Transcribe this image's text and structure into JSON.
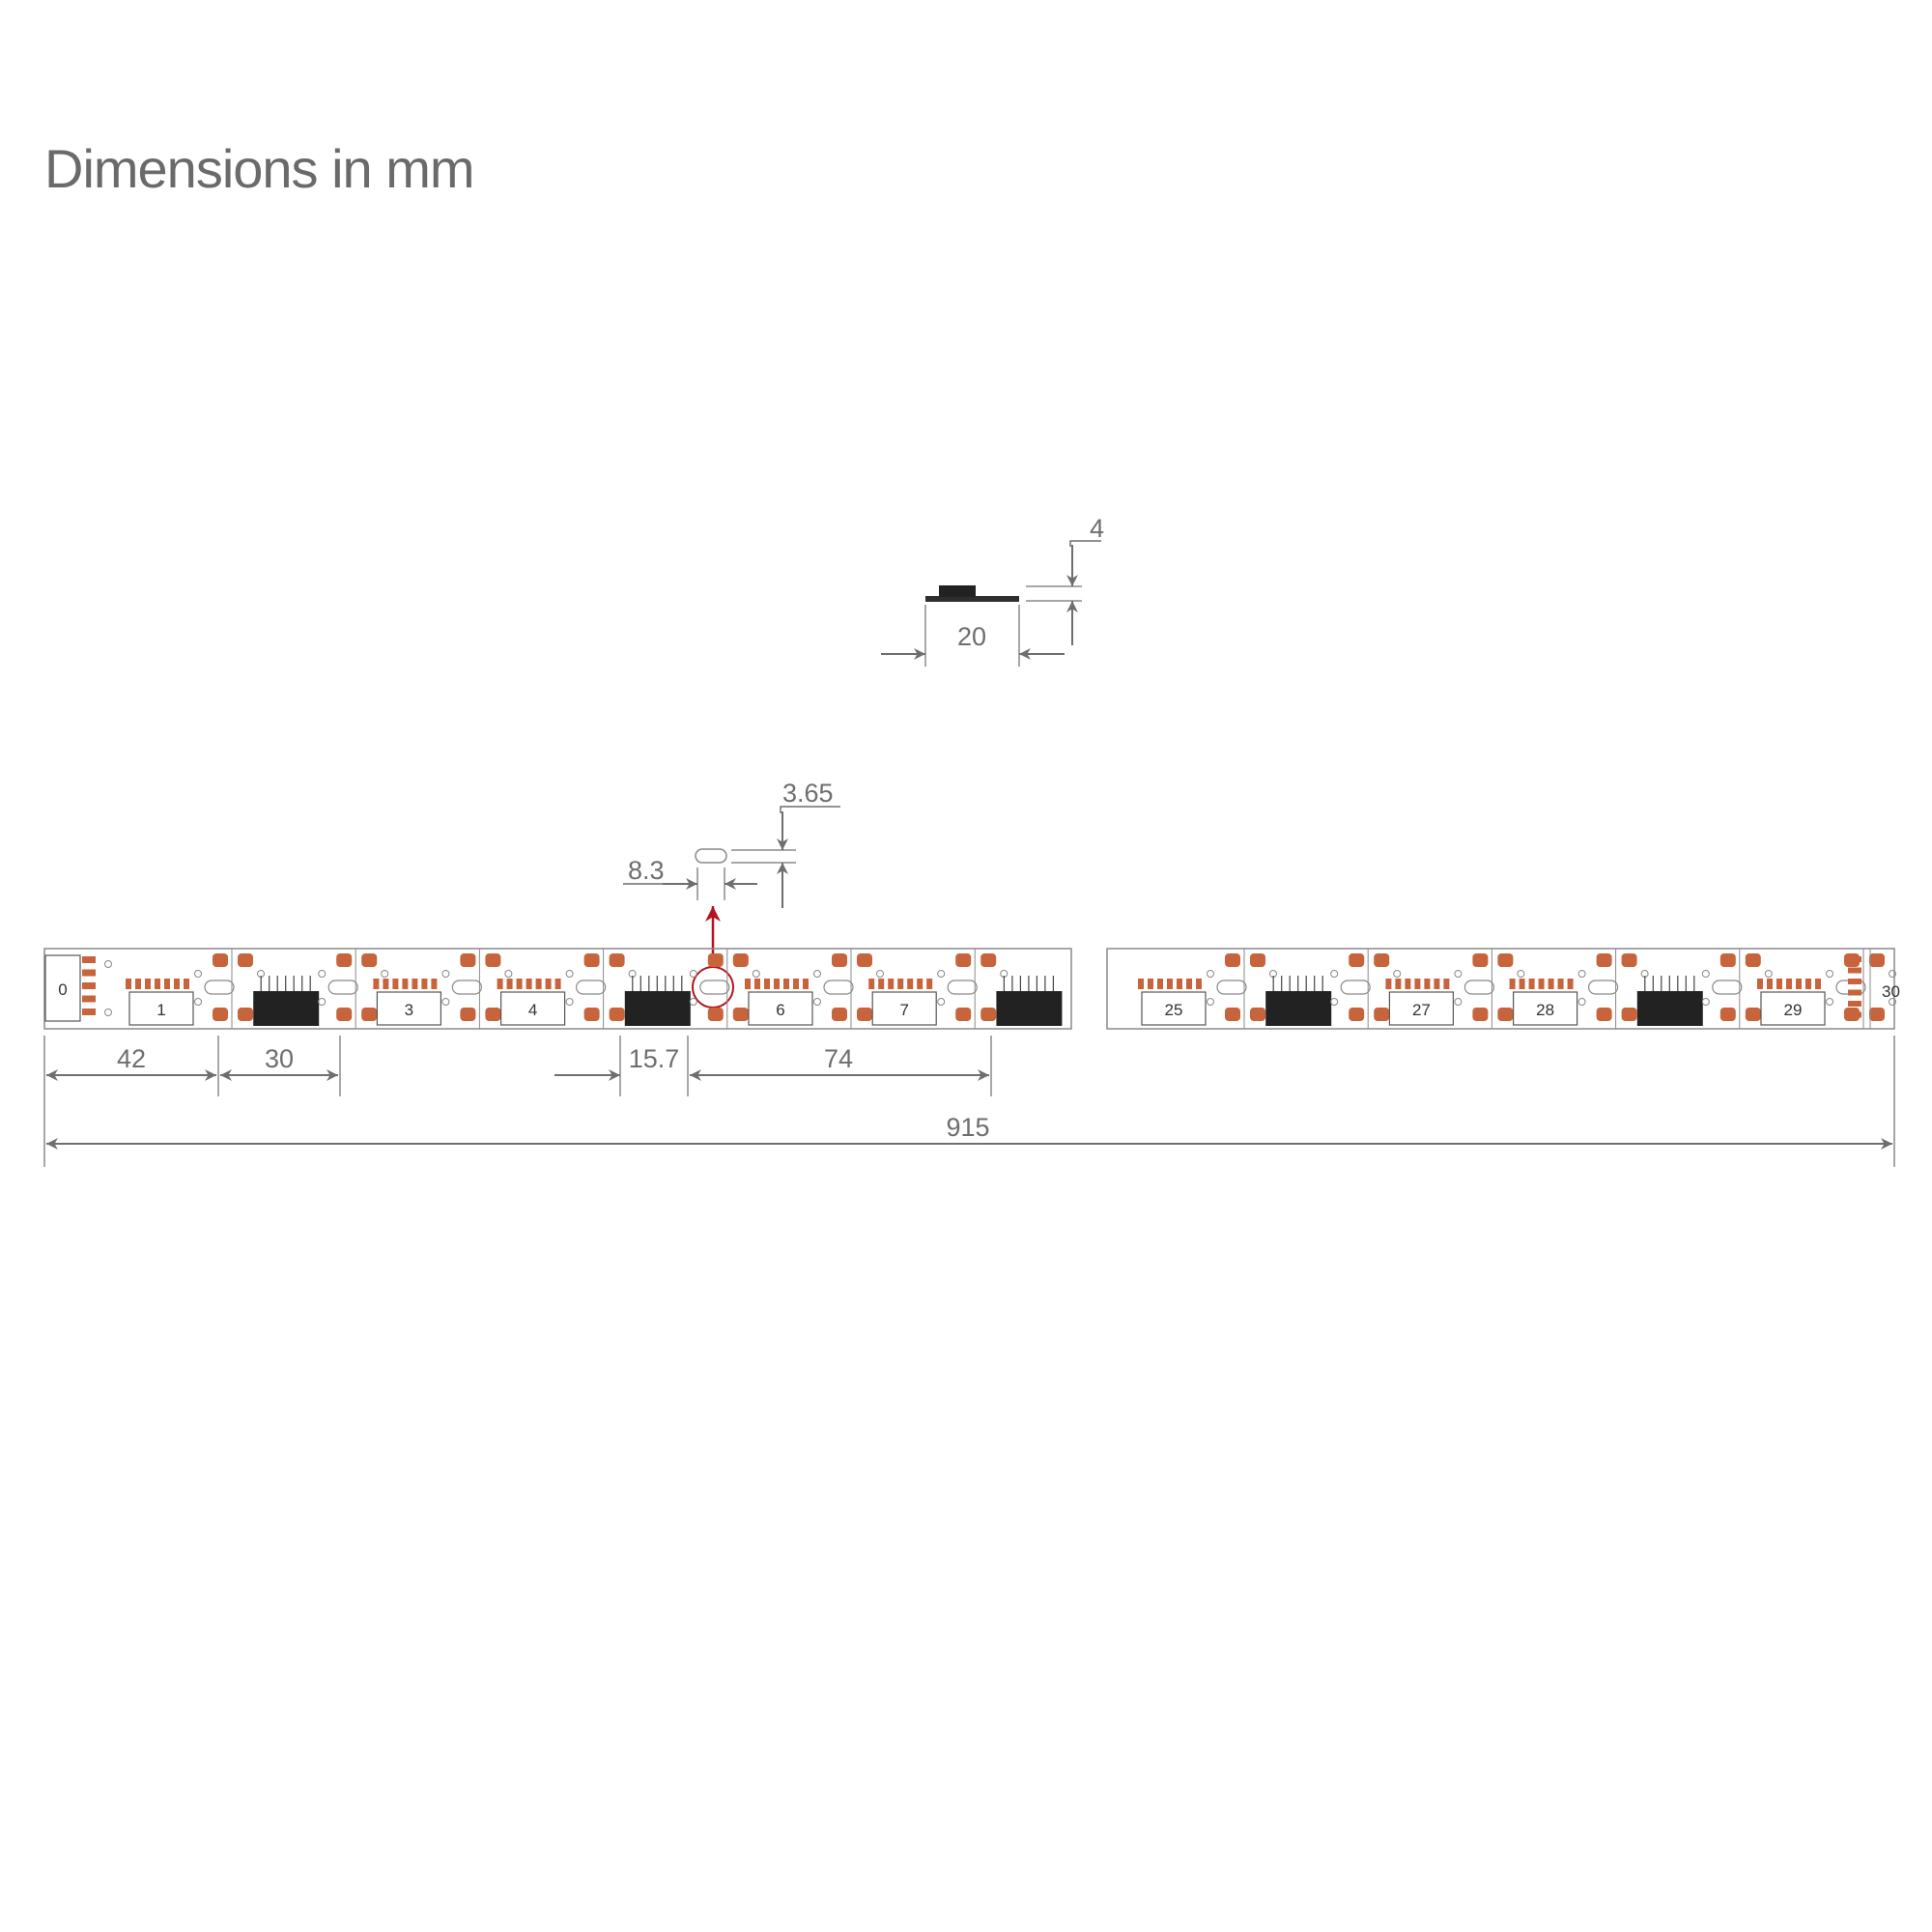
{
  "title": "Dimensions in mm",
  "colors": {
    "pad": "#c8643c",
    "chip": "#222222",
    "outline": "#8a8a8a",
    "dimension": "#6e6e6e",
    "marker": "#b4141e"
  },
  "cross_section": {
    "width_label": "20",
    "height_label": "4"
  },
  "detail": {
    "cut_width_label": "8.3",
    "cut_height_label": "3.65"
  },
  "strip": {
    "segment_labels": [
      {
        "section": "left",
        "slot": 0,
        "text": "1"
      },
      {
        "section": "left",
        "slot": 2,
        "text": "3"
      },
      {
        "section": "left",
        "slot": 3,
        "text": "4"
      },
      {
        "section": "left",
        "slot": 5,
        "text": "6"
      },
      {
        "section": "left",
        "slot": 6,
        "text": "7"
      },
      {
        "section": "right",
        "slot": 0,
        "text": "25"
      },
      {
        "section": "right",
        "slot": 2,
        "text": "27"
      },
      {
        "section": "right",
        "slot": 3,
        "text": "28"
      },
      {
        "section": "right",
        "slot": 5,
        "text": "29"
      }
    ],
    "chip_slots": {
      "left": [
        1,
        4,
        7
      ],
      "right": [
        1,
        4
      ]
    },
    "start_label": "0",
    "end_label": "30"
  },
  "dimensions": {
    "lead_in": "42",
    "pitch": "30",
    "chip_length": "15.7",
    "segment_span": "74",
    "total_length": "915"
  }
}
